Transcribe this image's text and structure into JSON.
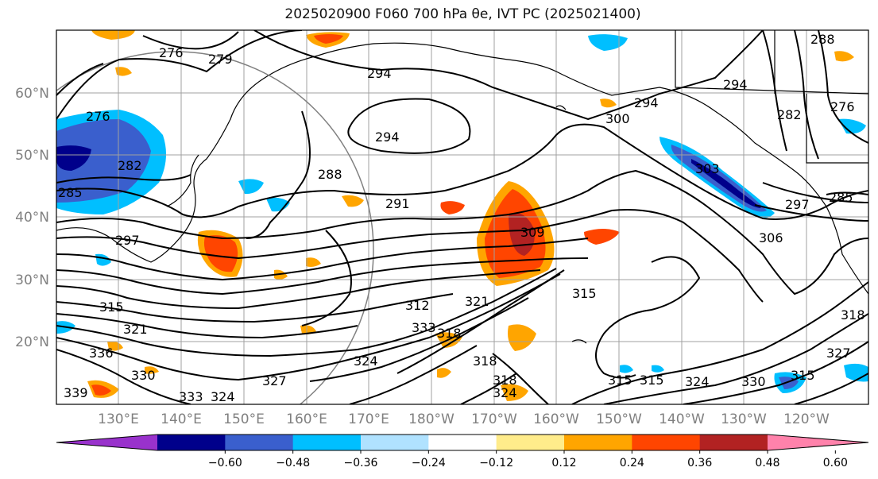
{
  "title": "2025020900 F060 700 hPa θe, IVT PC (2025021400)",
  "lat_labels": [
    "60°N",
    "50°N",
    "40°N",
    "30°N",
    "20°N"
  ],
  "lon_labels": [
    "130°E",
    "140°E",
    "150°E",
    "160°E",
    "170°E",
    "180°W",
    "170°W",
    "160°W",
    "150°W",
    "140°W",
    "130°W",
    "120°W"
  ],
  "colorbar": {
    "colors": [
      "#9932cc",
      "#00008b",
      "#3a5fcd",
      "#00bfff",
      "#b0e2ff",
      "#ffffff",
      "#ffec8b",
      "#ffa500",
      "#ff4500",
      "#b22222",
      "#ff82ab"
    ],
    "ticks": [
      "−0.60",
      "−0.48",
      "−0.36",
      "−0.24",
      "−0.12",
      "0.12",
      "0.24",
      "0.36",
      "0.48",
      "0.60"
    ]
  },
  "contour_labels": [
    "276",
    "279",
    "294",
    "294",
    "294",
    "300",
    "294",
    "288",
    "282",
    "276",
    "276",
    "282",
    "285",
    "288",
    "291",
    "303",
    "285",
    "297",
    "297",
    "309",
    "306",
    "315",
    "315",
    "312",
    "321",
    "333",
    "318",
    "321",
    "324",
    "318",
    "318",
    "327",
    "324",
    "330",
    "336",
    "333",
    "324",
    "315",
    "324",
    "330",
    "327",
    "315",
    "315",
    "318",
    "339"
  ]
}
